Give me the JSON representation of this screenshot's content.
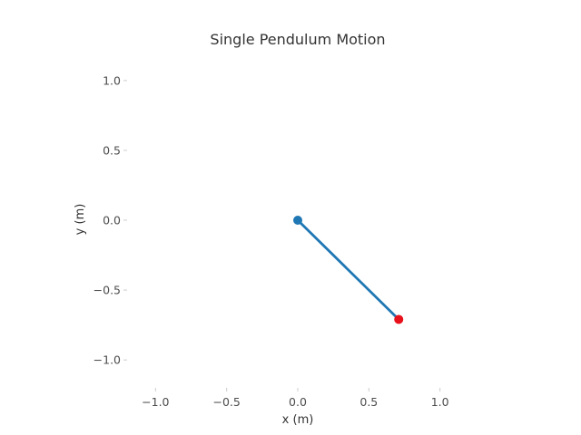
{
  "chart_data": {
    "type": "scatter",
    "title": "Single Pendulum Motion",
    "xlabel": "x (m)",
    "ylabel": "y (m)",
    "xlim": [
      -1.2,
      1.2
    ],
    "ylim": [
      -1.2,
      1.2
    ],
    "xticks": [
      -1.0,
      -0.5,
      0.0,
      0.5,
      1.0
    ],
    "yticks": [
      -1.0,
      -0.5,
      0.0,
      0.5,
      1.0
    ],
    "xtick_labels": [
      "−1.0",
      "−0.5",
      "0.0",
      "0.5",
      "1.0"
    ],
    "ytick_labels": [
      "−1.0",
      "−0.5",
      "0.0",
      "0.5",
      "1.0"
    ],
    "grid": false,
    "pivot": {
      "x": 0.0,
      "y": 0.0
    },
    "bob": {
      "x": 0.71,
      "y": -0.71
    },
    "colors": {
      "rod": "#1f77b4",
      "pivot": "#1f77b4",
      "bob": "#e8111b",
      "text": "#333333",
      "tick": "#4d4d4d"
    }
  }
}
